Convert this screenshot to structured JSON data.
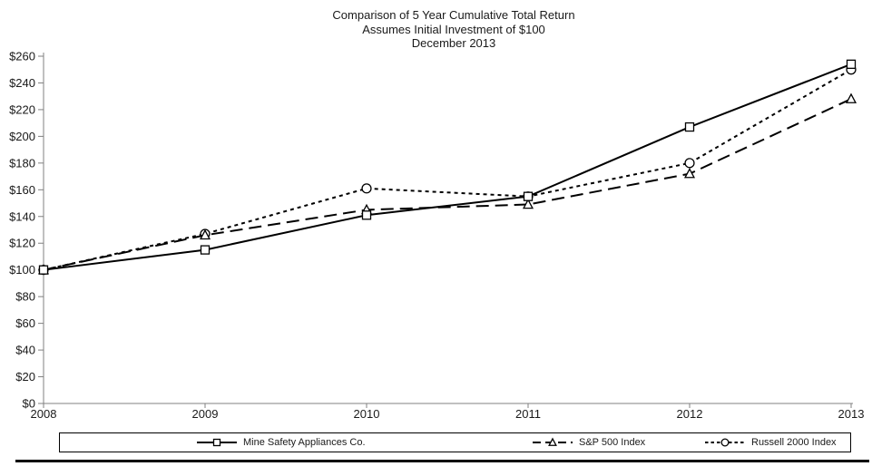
{
  "page": {
    "background": "#ffffff",
    "text_color": "#1a1a1a"
  },
  "title": {
    "line1": "Comparison of 5 Year Cumulative Total Return",
    "line2": "Assumes Initial Investment of $100",
    "line3": "December 2013"
  },
  "chart_data": {
    "type": "line",
    "title": "Comparison of 5 Year Cumulative Total Return",
    "subtitle": "Assumes Initial Investment of $100",
    "date_label": "December 2013",
    "x": [
      2008,
      2009,
      2010,
      2011,
      2012,
      2013
    ],
    "x_labels": [
      "2008",
      "2009",
      "2010",
      "2011",
      "2012",
      "2013"
    ],
    "ylim": [
      0,
      260
    ],
    "y_tick_step": 20,
    "y_tick_values": [
      0,
      20,
      40,
      60,
      80,
      100,
      120,
      140,
      160,
      180,
      200,
      220,
      240,
      260
    ],
    "y_tick_labels": [
      "$0",
      "$20",
      "$40",
      "$60",
      "$80",
      "$100",
      "$120",
      "$140",
      "$160",
      "$180",
      "$200",
      "$220",
      "$240",
      "$260"
    ],
    "grid": false,
    "legend_position": "bottom",
    "axis_color": "#808080",
    "series_color": "#000000",
    "series": [
      {
        "name": "Mine Safety Appliances Co.",
        "marker": "square",
        "line_style": "solid",
        "values": [
          100,
          115,
          141,
          155,
          207,
          254
        ]
      },
      {
        "name": "S&P 500 Index",
        "marker": "triangle",
        "line_style": "dashed",
        "values": [
          100,
          126,
          145,
          149,
          172,
          228
        ]
      },
      {
        "name": "Russell 2000 Index",
        "marker": "circle",
        "line_style": "dotted",
        "values": [
          100,
          127,
          161,
          155,
          180,
          250
        ]
      }
    ]
  }
}
